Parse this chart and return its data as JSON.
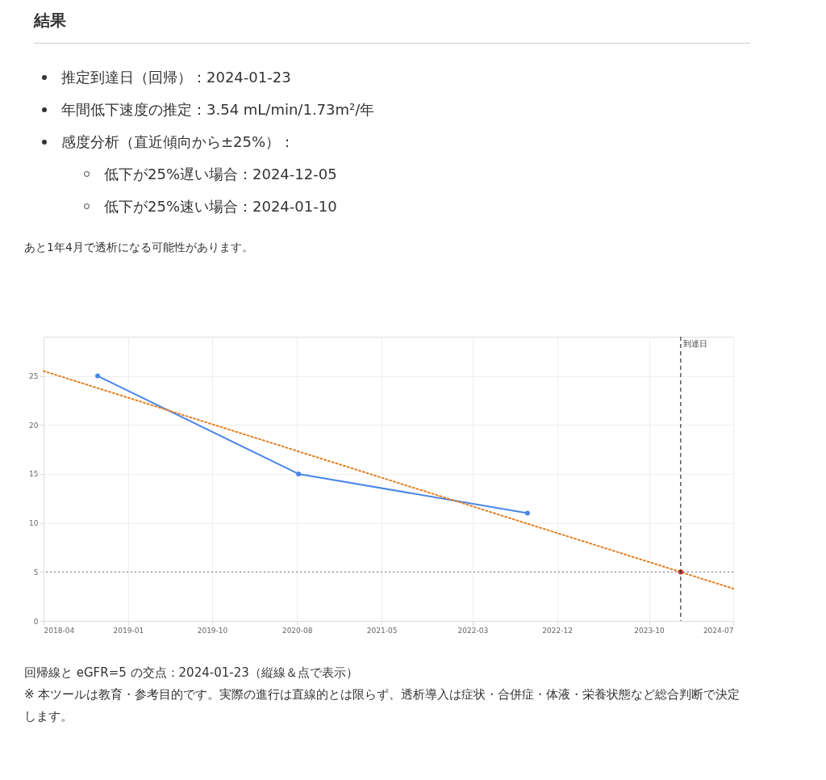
{
  "chart_data": {
    "type": "line",
    "title": "結果",
    "annotations": [
      "推定到達日（回帰）：2024-01-23",
      "年間低下速度の推定：3.54 mL/min/1.73m²/年",
      "感度分析（直近傾向から±25%）：",
      "低下が25%遅い場合：2024-12-05",
      "低下が25%速い場合：2024-01-10",
      "あと1年4月で透析になる可能性があります。",
      "回帰線と eGFR=5 の交点：2024-01-23（縦線＆点で表示）",
      "※ 本ツールは教育・参考目的です。実際の進行は直線的とは限らず、透析導入は症状・合併症・体液・栄養状態など総合判断で決定します。"
    ],
    "series": [
      {
        "color": "#4a86e8",
        "x": [
          "2018-10-11",
          "2020-08-06",
          "2022-09-03"
        ],
        "values": [
          25,
          15,
          11
        ],
        "marker": "circle",
        "line_style": "solid"
      },
      {
        "color": "#e67e22",
        "x": [
          "2018-04-15",
          "2024-07-15"
        ],
        "values": [
          25.5,
          3.3
        ],
        "marker": "none",
        "line_style": "dotted"
      },
      {
        "type": "scatter",
        "color": "#d62728",
        "x": [
          "2024-01-23"
        ],
        "values": [
          5
        ],
        "marker": "circle"
      }
    ],
    "xlim": [
      "2018-04-15",
      "2024-07-15"
    ],
    "xticks": [
      {
        "value": "2018-04-15",
        "label": "2018-04"
      },
      {
        "value": "2019-01-20",
        "label": "2019-01"
      },
      {
        "value": "2019-10-25",
        "label": "2019-10"
      },
      {
        "value": "2020-08-01",
        "label": "2020-08"
      },
      {
        "value": "2021-05-08",
        "label": "2021-05"
      },
      {
        "value": "2022-03-05",
        "label": "2022-03"
      },
      {
        "value": "2022-12-10",
        "label": "2022-12"
      },
      {
        "value": "2023-10-10",
        "label": "2023-10"
      },
      {
        "value": "2024-07-15",
        "label": "2024-07"
      }
    ],
    "ylim": [
      0,
      29
    ],
    "yticks": [
      0,
      5,
      10,
      15,
      20,
      25
    ],
    "ref_lines": [
      {
        "axis": "y",
        "value": 5,
        "color": "#888888",
        "line_style": "dotted"
      },
      {
        "axis": "x",
        "value": "2024-01-23",
        "label": "到達日",
        "color": "#333333",
        "line_style": "dashed"
      }
    ],
    "grid": true
  }
}
